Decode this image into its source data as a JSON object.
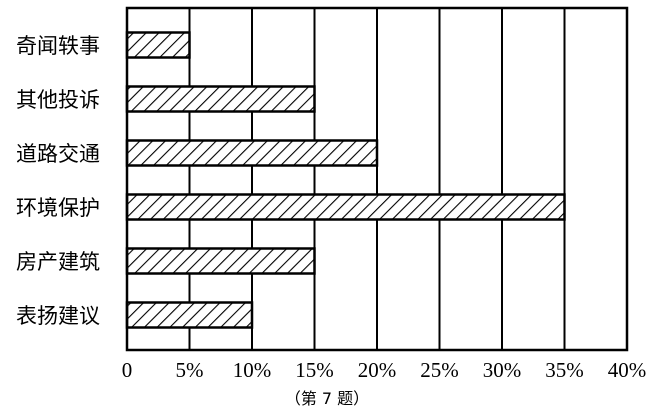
{
  "chart_data": {
    "type": "bar",
    "orientation": "horizontal",
    "categories": [
      "奇闻轶事",
      "其他投诉",
      "道路交通",
      "环境保护",
      "房产建筑",
      "表扬建议"
    ],
    "values": [
      5,
      15,
      20,
      35,
      15,
      10
    ],
    "unit": "%",
    "xlim": [
      0,
      40
    ],
    "x_ticks": [
      "0",
      "5%",
      "10%",
      "15%",
      "20%",
      "25%",
      "30%",
      "35%",
      "40%"
    ],
    "grid": "vertical",
    "bar_fill": "hatched",
    "bar_color": "#000000",
    "caption": "（第 7 题）"
  }
}
